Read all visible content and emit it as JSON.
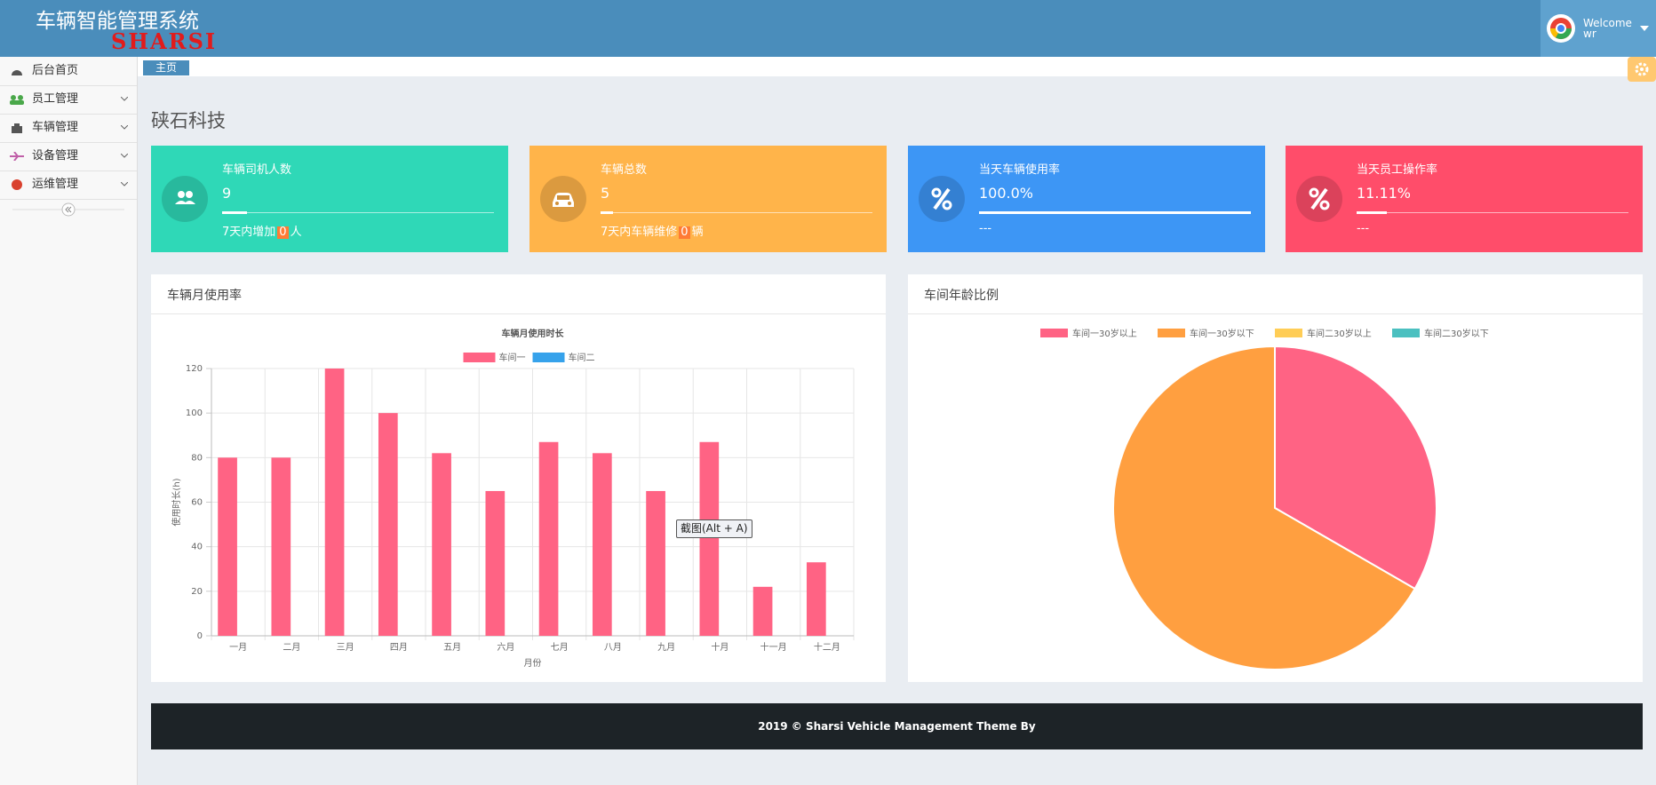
{
  "header": {
    "title": "车辆智能管理系统",
    "logo": "SHARSI",
    "user_greeting": "Welcome",
    "user_name": "wr"
  },
  "sidebar": {
    "items": [
      "后台首页",
      "员工管理",
      "车辆管理",
      "设备管理",
      "运维管理"
    ]
  },
  "breadcrumb": "主页",
  "page_title": "硖石科技",
  "cards": [
    {
      "title": "车辆司机人数",
      "value": "9",
      "footer_prefix": "7天内增加",
      "footer_count": "0",
      "footer_suffix": "人"
    },
    {
      "title": "车辆总数",
      "value": "5",
      "footer_prefix": "7天内车辆维修",
      "footer_count": "0",
      "footer_suffix": "辆"
    },
    {
      "title": "当天车辆使用率",
      "value": "100.0%",
      "footer_prefix": "---"
    },
    {
      "title": "当天员工操作率",
      "value": "11.11%",
      "footer_prefix": "---"
    }
  ],
  "overlay_tooltip": "截图(Alt + A)",
  "footer": "2019 © Sharsi Vehicle Management Theme By",
  "chart_data": [
    {
      "type": "bar",
      "panel_title": "车辆月使用率",
      "title": "车辆月使用时长",
      "x_label": "月份",
      "y_label": "使用时长(h)",
      "categories": [
        "一月",
        "二月",
        "三月",
        "四月",
        "五月",
        "六月",
        "七月",
        "八月",
        "九月",
        "十月",
        "十一月",
        "十二月"
      ],
      "series": [
        {
          "name": "车间一",
          "color": "#ff6384",
          "values": [
            80,
            80,
            120,
            100,
            82,
            65,
            87,
            82,
            65,
            87,
            22,
            33
          ]
        },
        {
          "name": "车间二",
          "color": "#36a2eb",
          "values": [
            null,
            null,
            null,
            null,
            null,
            null,
            null,
            null,
            null,
            null,
            null,
            null
          ]
        }
      ],
      "ylim": [
        0,
        120
      ],
      "yticks": [
        0,
        20,
        40,
        60,
        80,
        100,
        120
      ],
      "grid": true,
      "legend": "top"
    },
    {
      "type": "pie",
      "panel_title": "车间年龄比例",
      "categories": [
        "车间一30岁以上",
        "车间一30岁以下",
        "车间二30岁以上",
        "车间二30岁以下"
      ],
      "values": [
        1,
        2,
        0,
        0
      ],
      "colors": [
        "#ff6384",
        "#ff9f40",
        "#ffcd56",
        "#4bc0c0"
      ],
      "legend": "top"
    }
  ]
}
